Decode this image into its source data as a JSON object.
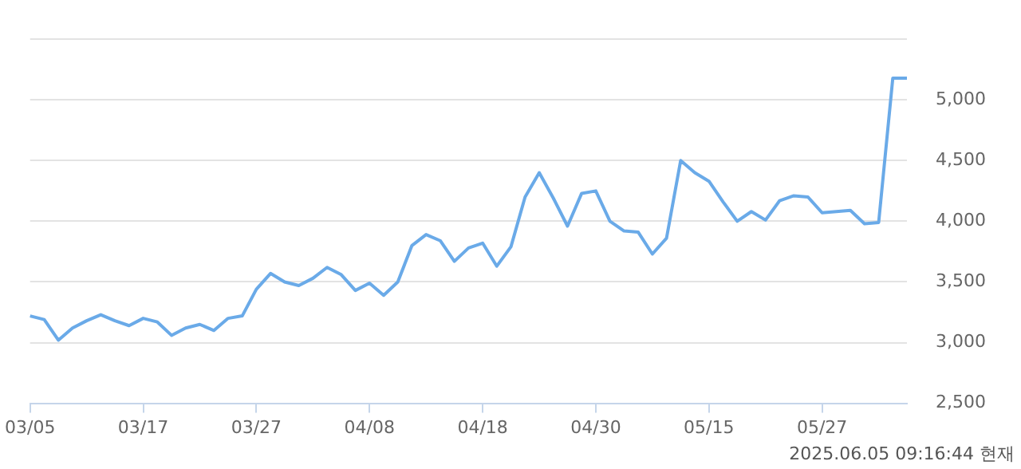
{
  "chart_data": {
    "type": "line",
    "categories": [
      "03/05",
      null,
      null,
      null,
      null,
      null,
      null,
      null,
      "03/17",
      null,
      null,
      null,
      null,
      null,
      null,
      null,
      "03/27",
      null,
      null,
      null,
      null,
      null,
      null,
      null,
      "04/08",
      null,
      null,
      null,
      null,
      null,
      null,
      null,
      "04/18",
      null,
      null,
      null,
      null,
      null,
      null,
      null,
      "04/30",
      null,
      null,
      null,
      null,
      null,
      null,
      null,
      "05/15",
      null,
      null,
      null,
      null,
      null,
      null,
      null,
      "05/27",
      null,
      null,
      null,
      null,
      null,
      null
    ],
    "series": [
      {
        "color": "#6aaae8",
        "values": [
          3220,
          3190,
          3020,
          3120,
          3180,
          3230,
          3180,
          3140,
          3200,
          3170,
          3060,
          3120,
          3150,
          3100,
          3200,
          3220,
          3440,
          3570,
          3500,
          3470,
          3530,
          3620,
          3560,
          3430,
          3490,
          3390,
          3500,
          3800,
          3890,
          3840,
          3670,
          3780,
          3820,
          3630,
          3790,
          4200,
          4400,
          4190,
          3960,
          4230,
          4250,
          4000,
          3920,
          3910,
          3730,
          3860,
          4500,
          4400,
          4330,
          4160,
          4000,
          4080,
          4010,
          4170,
          4210,
          4200,
          4070,
          4080,
          4090,
          3980,
          3990,
          5180,
          5180
        ]
      }
    ],
    "ylim": [
      2500,
      5500
    ],
    "yticks": [
      {
        "value": 2500,
        "label": "2,500"
      },
      {
        "value": 3000,
        "label": "3,000"
      },
      {
        "value": 3500,
        "label": "3,500"
      },
      {
        "value": 4000,
        "label": "4,000"
      },
      {
        "value": 4500,
        "label": "4,500"
      },
      {
        "value": 5000,
        "label": "5,000"
      },
      {
        "value": 5500,
        "label": null
      }
    ],
    "grid": "y",
    "legend": false,
    "marker": "none",
    "line_style": "solid",
    "annotations": [
      "2025.06.05 09:16:44 현재"
    ]
  }
}
